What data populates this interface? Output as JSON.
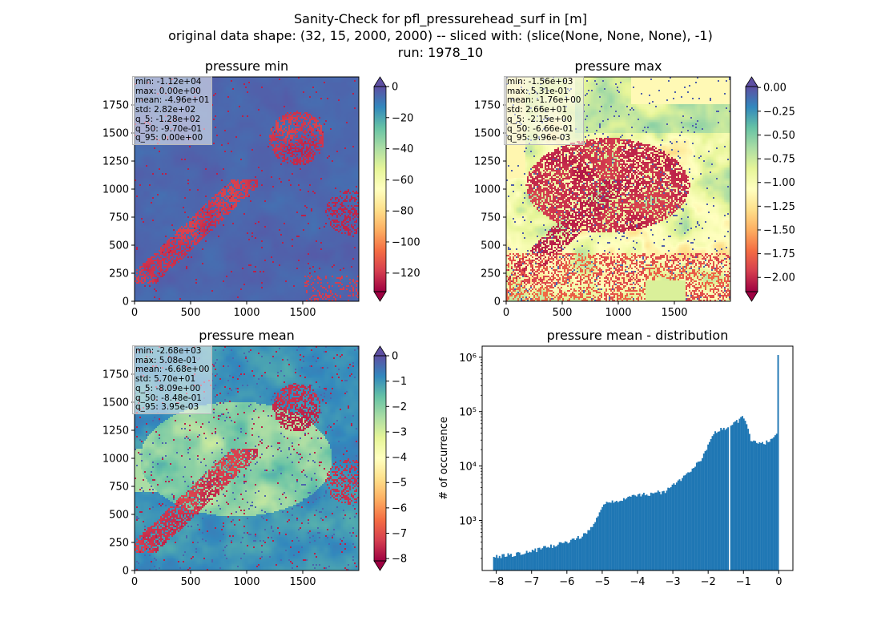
{
  "figure": {
    "title_line1": "Sanity-Check for pfl_pressurehead_surf in [m]",
    "title_line2": "original data shape: (32, 15, 2000, 2000) -- sliced with: (slice(None, None, None), -1)",
    "title_line3": "run: 1978_10"
  },
  "colors": {
    "histogram": "#1f77b4",
    "colormap": "Spectral",
    "colorbar_under": "#9e0142",
    "colorbar_over": "#5e4fa2"
  },
  "panels": [
    {
      "title": "pressure min",
      "stats": [
        "min: -1.12e+04",
        "max: 0.00e+00",
        "mean: -4.96e+01",
        "std: 2.82e+02",
        "q_5: -1.28e+02",
        "q_50: -9.70e-01",
        "q_95: 0.00e+00"
      ],
      "xticks": [
        "0",
        "500",
        "1000",
        "1500"
      ],
      "yticks": [
        "0",
        "250",
        "500",
        "750",
        "1000",
        "1250",
        "1500",
        "1750"
      ],
      "colorbar": {
        "range": [
          -132,
          0
        ],
        "ticks": [
          "0",
          "−20",
          "−40",
          "−60",
          "−80",
          "−100",
          "−120"
        ],
        "tick_values": [
          0,
          -20,
          -40,
          -60,
          -80,
          -100,
          -120
        ],
        "extend": "both"
      }
    },
    {
      "title": "pressure max",
      "stats": [
        "min: -1.56e+03",
        "max: 5.31e-01",
        "mean: -1.76e+00",
        "std: 2.66e+01",
        "q_5: -2.15e+00",
        "q_50: -6.66e-01",
        "q_95: 9.96e-03"
      ],
      "xticks": [
        "0",
        "500",
        "1000",
        "1500"
      ],
      "yticks": [
        "0",
        "250",
        "500",
        "750",
        "1000",
        "1250",
        "1500",
        "1750"
      ],
      "colorbar": {
        "range": [
          -2.15,
          0.01
        ],
        "ticks": [
          "0.00",
          "−0.25",
          "−0.50",
          "−0.75",
          "−1.00",
          "−1.25",
          "−1.50",
          "−1.75",
          "−2.00"
        ],
        "tick_values": [
          0,
          -0.25,
          -0.5,
          -0.75,
          -1.0,
          -1.25,
          -1.5,
          -1.75,
          -2.0
        ],
        "extend": "both"
      }
    },
    {
      "title": "pressure mean",
      "stats": [
        "min: -2.68e+03",
        "max: 5.08e-01",
        "mean: -6.68e+00",
        "std: 5.70e+01",
        "q_5: -8.09e+00",
        "q_50: -8.48e-01",
        "q_95: 3.95e-03"
      ],
      "xticks": [
        "0",
        "500",
        "1000",
        "1500"
      ],
      "yticks": [
        "0",
        "250",
        "500",
        "750",
        "1000",
        "1250",
        "1500",
        "1750"
      ],
      "colorbar": {
        "range": [
          -8.09,
          0.0
        ],
        "ticks": [
          "0",
          "−1",
          "−2",
          "−3",
          "−4",
          "−5",
          "−6",
          "−7",
          "−8"
        ],
        "tick_values": [
          0,
          -1,
          -2,
          -3,
          -4,
          -5,
          -6,
          -7,
          -8
        ],
        "extend": "both"
      }
    }
  ],
  "chart_data": {
    "type": "bar",
    "title": "pressure mean - distribution",
    "ylabel": "# of occurrence",
    "xlabel": "",
    "yscale": "log",
    "xlim": [
      -8.4,
      0.4
    ],
    "ylim": [
      120,
      1600000
    ],
    "xticks": [
      "−8",
      "−7",
      "−6",
      "−5",
      "−4",
      "−3",
      "−2",
      "−1",
      "0"
    ],
    "xtick_values": [
      -8,
      -7,
      -6,
      -5,
      -4,
      -3,
      -2,
      -1,
      0
    ],
    "yticks": [
      "10³",
      "10⁴",
      "10⁵",
      "10⁶"
    ],
    "ytick_values": [
      1000,
      10000,
      100000,
      1000000
    ],
    "bin_range": [
      -8.09,
      0.0
    ],
    "profile_x": [
      -8.09,
      -7.5,
      -7.0,
      -6.5,
      -6.2,
      -6.0,
      -5.8,
      -5.6,
      -5.4,
      -5.2,
      -5.0,
      -4.9,
      -4.7,
      -4.5,
      -4.0,
      -3.5,
      -3.2,
      -3.0,
      -2.8,
      -2.5,
      -2.2,
      -2.0,
      -1.8,
      -1.6,
      -1.42,
      -1.35,
      -1.2,
      -1.0,
      -0.9,
      -0.8,
      -0.7,
      -0.5,
      -0.3,
      -0.1,
      -0.02,
      0.0
    ],
    "profile_y": [
      215,
      235,
      270,
      330,
      370,
      400,
      440,
      500,
      620,
      900,
      1800,
      2000,
      2200,
      2300,
      2900,
      3200,
      3400,
      4300,
      5500,
      8000,
      13000,
      25000,
      40000,
      48000,
      52000,
      58000,
      65000,
      80000,
      55000,
      30000,
      27000,
      26000,
      28000,
      36000,
      40000,
      1100000
    ],
    "gap_x": -1.39
  }
}
